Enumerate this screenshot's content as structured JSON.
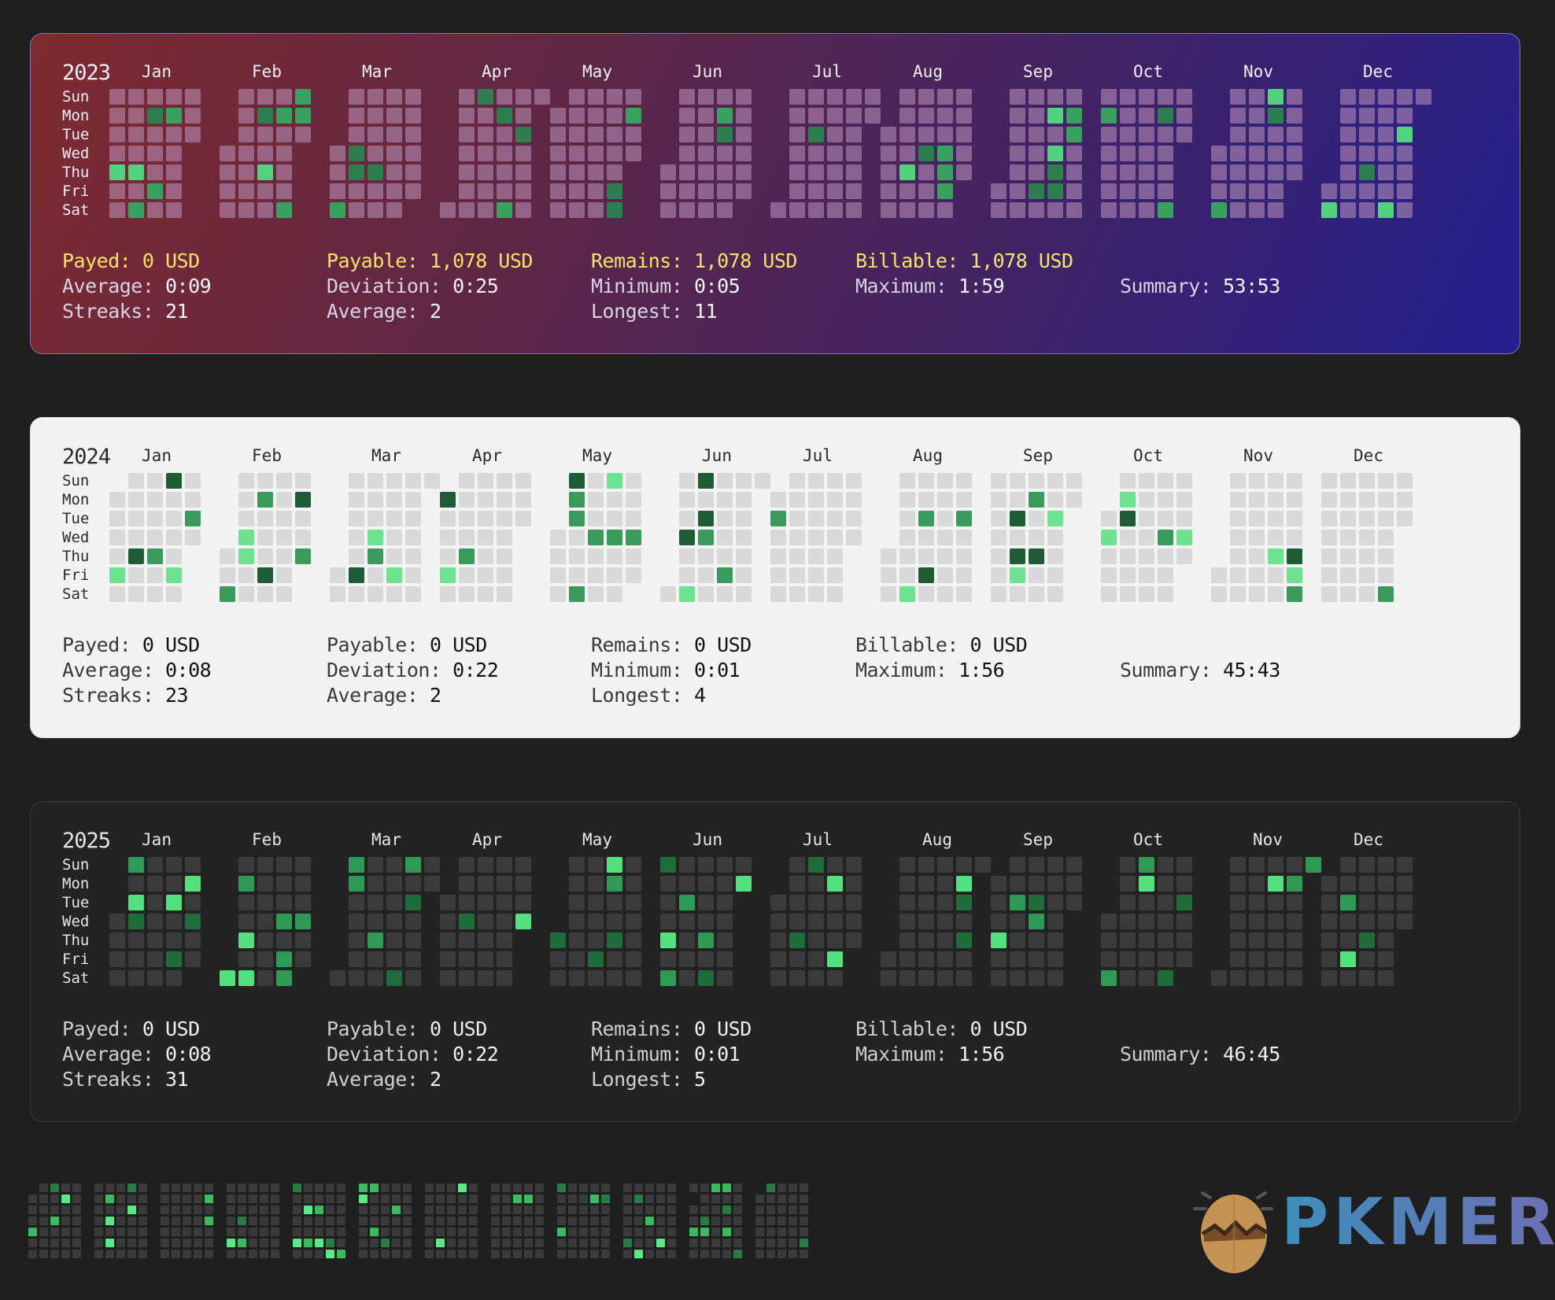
{
  "day_labels": [
    "Sun",
    "Mon",
    "Tue",
    "Wed",
    "Thu",
    "Fri",
    "Sat"
  ],
  "month_labels": [
    "Jan",
    "Feb",
    "Mar",
    "Apr",
    "May",
    "Jun",
    "Jul",
    "Aug",
    "Sep",
    "Oct",
    "Nov",
    "Dec"
  ],
  "panels": [
    {
      "year": "2023",
      "theme": "gradient",
      "colors": {
        "empty": "rgba(190,150,190,0.55)",
        "levels": [
          "#2e7d4f",
          "#3aa060",
          "#52d17f"
        ]
      },
      "stats": {
        "payed": {
          "label": "Payed:",
          "value": "0 USD"
        },
        "payable": {
          "label": "Payable:",
          "value": "1,078 USD"
        },
        "remains": {
          "label": "Remains:",
          "value": "1,078 USD"
        },
        "billable": {
          "label": "Billable:",
          "value": "1,078 USD"
        },
        "average_time": {
          "label": "Average:",
          "value": "0:09"
        },
        "deviation": {
          "label": "Deviation:",
          "value": "0:25"
        },
        "minimum": {
          "label": "Minimum:",
          "value": "0:05"
        },
        "maximum": {
          "label": "Maximum:",
          "value": "1:59"
        },
        "summary": {
          "label": "Summary:",
          "value": "53:53"
        },
        "streaks": {
          "label": "Streaks:",
          "value": "21"
        },
        "average_streak": {
          "label": "Average:",
          "value": "2"
        },
        "longest": {
          "label": "Longest:",
          "value": "11"
        }
      }
    },
    {
      "year": "2024",
      "theme": "light",
      "colors": {
        "empty": "#d9d9d9",
        "levels": [
          "#1f5c36",
          "#3a9a5c",
          "#6ee38f"
        ]
      },
      "stats": {
        "payed": {
          "label": "Payed:",
          "value": "0 USD"
        },
        "payable": {
          "label": "Payable:",
          "value": "0 USD"
        },
        "remains": {
          "label": "Remains:",
          "value": "0 USD"
        },
        "billable": {
          "label": "Billable:",
          "value": "0 USD"
        },
        "average_time": {
          "label": "Average:",
          "value": "0:08"
        },
        "deviation": {
          "label": "Deviation:",
          "value": "0:22"
        },
        "minimum": {
          "label": "Minimum:",
          "value": "0:01"
        },
        "maximum": {
          "label": "Maximum:",
          "value": "1:56"
        },
        "summary": {
          "label": "Summary:",
          "value": "45:43"
        },
        "streaks": {
          "label": "Streaks:",
          "value": "23"
        },
        "average_streak": {
          "label": "Average:",
          "value": "2"
        },
        "longest": {
          "label": "Longest:",
          "value": "4"
        }
      }
    },
    {
      "year": "2025",
      "theme": "dark",
      "colors": {
        "empty": "#3b3b3b",
        "levels": [
          "#1f6b3a",
          "#2f9a55",
          "#55e07f"
        ]
      },
      "stats": {
        "payed": {
          "label": "Payed:",
          "value": "0 USD"
        },
        "payable": {
          "label": "Payable:",
          "value": "0 USD"
        },
        "remains": {
          "label": "Remains:",
          "value": "0 USD"
        },
        "billable": {
          "label": "Billable:",
          "value": "0 USD"
        },
        "average_time": {
          "label": "Average:",
          "value": "0:08"
        },
        "deviation": {
          "label": "Deviation:",
          "value": "0:22"
        },
        "minimum": {
          "label": "Minimum:",
          "value": "0:01"
        },
        "maximum": {
          "label": "Maximum:",
          "value": "1:56"
        },
        "summary": {
          "label": "Summary:",
          "value": "46:45"
        },
        "streaks": {
          "label": "Streaks:",
          "value": "31"
        },
        "average_streak": {
          "label": "Average:",
          "value": "2"
        },
        "longest": {
          "label": "Longest:",
          "value": "5"
        }
      }
    }
  ],
  "logo": {
    "text": "PKMER"
  }
}
